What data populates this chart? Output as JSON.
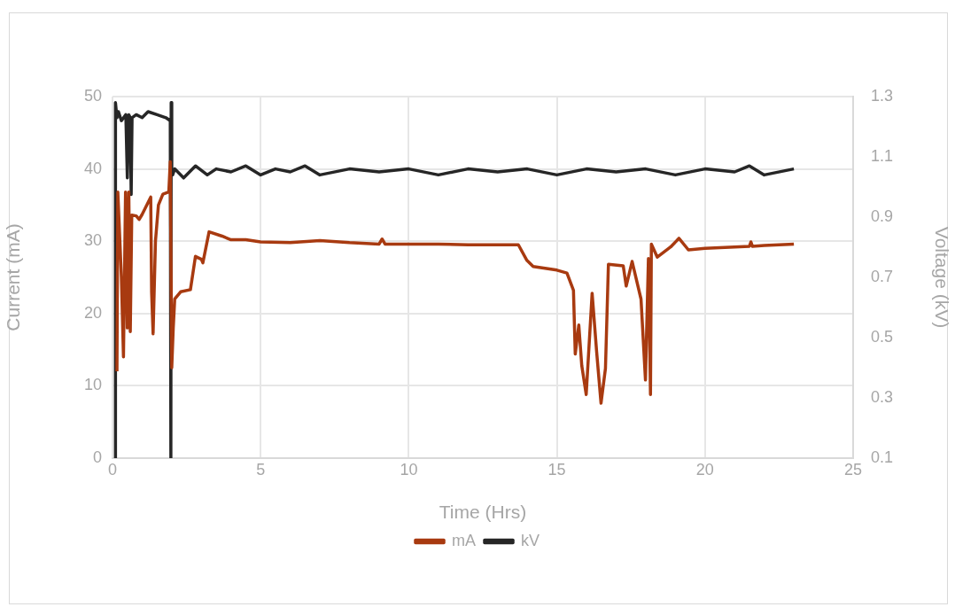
{
  "chart_data": {
    "type": "line",
    "xlabel": "Time (Hrs)",
    "ylabel": "Current (mA)",
    "y2label": "Voltage (kV)",
    "xlim": [
      0,
      25
    ],
    "xticks": [
      0,
      5,
      10,
      15,
      20,
      25
    ],
    "ylim": [
      0,
      50
    ],
    "yticks": [
      0,
      10,
      20,
      30,
      40,
      50
    ],
    "y2lim": [
      0.1,
      1.3
    ],
    "y2ticks": [
      0.1,
      0.3,
      0.5,
      0.7,
      0.9,
      1.1,
      1.3
    ],
    "grid": true,
    "legend": "bottom",
    "marker": "none",
    "line_style": "solid",
    "series": [
      {
        "name": "mA",
        "color": "#a83a10",
        "x": [
          0.15,
          0.18,
          0.3,
          0.37,
          0.44,
          0.5,
          0.55,
          0.6,
          0.65,
          0.8,
          0.9,
          1.0,
          1.29,
          1.32,
          1.37,
          1.45,
          1.55,
          1.7,
          1.9,
          1.95,
          2.0,
          2.05,
          2.1,
          2.3,
          2.63,
          2.8,
          3.0,
          3.05,
          3.26,
          3.7,
          4.0,
          4.5,
          5,
          6,
          7,
          8,
          9,
          9.1,
          9.2,
          10,
          11,
          12,
          13,
          13.7,
          13.98,
          14.2,
          15,
          15.34,
          15.56,
          15.62,
          15.74,
          15.84,
          15.99,
          16.19,
          16.34,
          16.49,
          16.64,
          16.74,
          17.24,
          17.34,
          17.54,
          17.84,
          17.99,
          18.09,
          18.16,
          18.19,
          18.39,
          18.84,
          19.12,
          19.44,
          20,
          21,
          21.5,
          21.55,
          21.6,
          22,
          23
        ],
        "values": [
          12,
          36.8,
          25,
          14,
          36.8,
          18,
          36.8,
          17.5,
          33.6,
          33.5,
          33,
          33.7,
          36.1,
          23,
          17.2,
          30,
          35,
          36.5,
          36.8,
          41,
          12.5,
          18,
          22,
          23,
          23.3,
          27.9,
          27.5,
          27,
          31.3,
          30.7,
          30.2,
          30.2,
          29.9,
          29.8,
          30.1,
          29.8,
          29.6,
          30.3,
          29.6,
          29.6,
          29.6,
          29.5,
          29.5,
          29.5,
          27.4,
          26.5,
          26,
          25.6,
          23.2,
          14.4,
          18.4,
          12.8,
          8.8,
          22.8,
          14.8,
          7.6,
          12.4,
          26.8,
          26.6,
          23.8,
          27.2,
          22,
          10.8,
          27.6,
          8.8,
          29.6,
          27.8,
          29.2,
          30.4,
          28.8,
          29,
          29.2,
          29.3,
          29.9,
          29.3,
          29.4,
          29.6
        ]
      },
      {
        "name": "kV",
        "color": "#262626",
        "axis": "y2",
        "x": [
          0.1,
          0.1,
          0.15,
          0.2,
          0.3,
          0.45,
          0.5,
          0.55,
          0.6,
          0.63,
          0.66,
          0.8,
          1.0,
          1.2,
          1.5,
          1.8,
          1.95,
          1.97,
          1.98,
          2.0,
          2.03,
          2.1,
          2.4,
          2.8,
          3.2,
          3.5,
          4.0,
          4.5,
          5,
          5.5,
          6,
          6.5,
          7,
          8,
          9,
          10,
          11,
          12,
          13,
          14,
          15,
          16,
          17,
          18,
          19,
          20,
          21,
          21.5,
          22,
          23
        ],
        "values": [
          0.1,
          1.28,
          1.23,
          1.25,
          1.22,
          1.24,
          1.03,
          1.24,
          1.23,
          0.975,
          1.23,
          1.24,
          1.23,
          1.25,
          1.24,
          1.23,
          1.22,
          0.1,
          1.28,
          1.05,
          1.04,
          1.06,
          1.03,
          1.07,
          1.04,
          1.06,
          1.05,
          1.07,
          1.04,
          1.06,
          1.05,
          1.07,
          1.04,
          1.06,
          1.05,
          1.06,
          1.04,
          1.06,
          1.05,
          1.06,
          1.04,
          1.06,
          1.05,
          1.06,
          1.04,
          1.06,
          1.05,
          1.07,
          1.04,
          1.06
        ]
      }
    ]
  }
}
